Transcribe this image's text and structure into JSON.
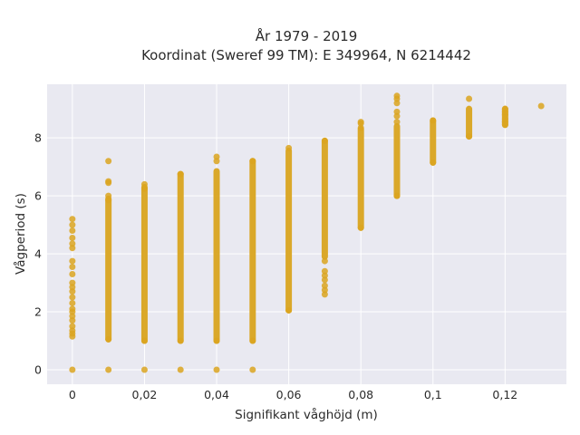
{
  "chart_data": {
    "type": "scatter",
    "title_lines": [
      "År 1979 - 2019",
      "Koordinat (Sweref 99 TM): E 349964, N 6214442"
    ],
    "xlabel": "Signifikant våghöjd (m)",
    "ylabel": "Vågperiod (s)",
    "xlim": [
      -0.007,
      0.137
    ],
    "ylim": [
      -0.5,
      9.85
    ],
    "xticks": [
      0,
      0.02,
      0.04,
      0.06,
      0.08,
      0.1,
      0.12
    ],
    "xtick_labels": [
      "0",
      "0,02",
      "0,04",
      "0,06",
      "0,08",
      "0,1",
      "0,12"
    ],
    "yticks": [
      0,
      2,
      4,
      6,
      8
    ],
    "ytick_labels": [
      "0",
      "2",
      "4",
      "6",
      "8"
    ],
    "grid": true,
    "marker_color": "#DAA520",
    "plot_bg": "#E9E9F1",
    "series": [
      {
        "points_by_x": [
          {
            "x": 0,
            "y": [
              0,
              1.15,
              1.25,
              1.35,
              1.5,
              1.7,
              1.85,
              2.0,
              2.1,
              2.3,
              2.5,
              2.7,
              2.85,
              3.0,
              3.3,
              3.55,
              3.75,
              4.2,
              4.35,
              4.55,
              4.8,
              5.0,
              5.2
            ]
          },
          {
            "x": 0.01,
            "y": [
              0,
              1.05,
              5.85,
              6.0,
              6.45,
              6.5,
              7.2
            ],
            "range": [
              1.05,
              5.9
            ]
          },
          {
            "x": 0.02,
            "y": [
              0,
              1.0,
              6.25,
              6.4
            ],
            "range": [
              1.0,
              6.3
            ]
          },
          {
            "x": 0.03,
            "y": [
              0,
              1.0,
              6.75
            ],
            "range": [
              1.0,
              6.75
            ]
          },
          {
            "x": 0.04,
            "y": [
              0,
              1.0,
              7.2,
              7.35
            ],
            "range": [
              1.0,
              6.85
            ]
          },
          {
            "x": 0.05,
            "y": [
              0,
              1.0,
              7.2
            ],
            "range": [
              1.0,
              7.2
            ]
          },
          {
            "x": 0.06,
            "y": [
              2.05,
              7.65
            ],
            "range": [
              2.05,
              7.55
            ]
          },
          {
            "x": 0.07,
            "y": [
              2.6,
              2.75,
              2.9,
              3.1,
              3.25,
              3.4,
              3.75,
              7.9
            ],
            "range": [
              3.9,
              7.9
            ]
          },
          {
            "x": 0.08,
            "y": [
              4.9,
              8.35,
              8.5,
              8.55
            ],
            "range": [
              4.9,
              8.3
            ]
          },
          {
            "x": 0.09,
            "y": [
              6.0,
              8.55,
              8.75,
              8.9,
              9.2,
              9.35,
              9.45
            ],
            "range": [
              6.0,
              8.4
            ]
          },
          {
            "x": 0.1,
            "y": [
              7.15,
              8.6
            ],
            "range": [
              7.15,
              8.6
            ]
          },
          {
            "x": 0.11,
            "y": [
              8.05,
              9.35
            ],
            "range": [
              8.05,
              9.0
            ]
          },
          {
            "x": 0.12,
            "y": [
              8.45,
              8.55,
              8.65,
              8.8,
              8.9,
              9.0
            ],
            "range": [
              8.45,
              9.0
            ]
          },
          {
            "x": 0.13,
            "y": [
              9.1
            ]
          }
        ]
      }
    ]
  }
}
